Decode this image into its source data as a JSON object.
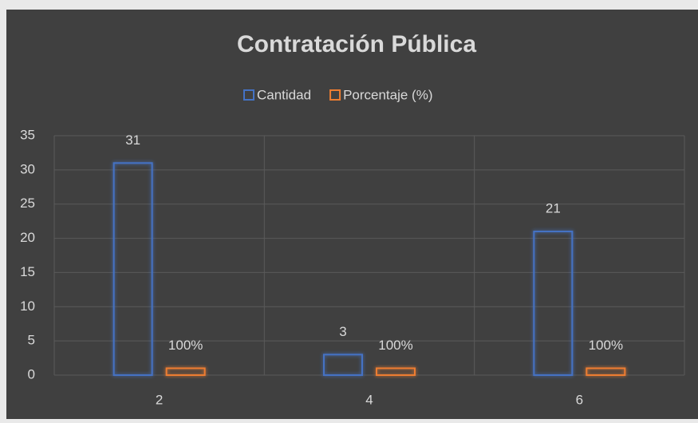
{
  "chart_data": {
    "type": "bar",
    "title": "Contratación Pública",
    "categories": [
      "2",
      "4",
      "6"
    ],
    "series": [
      {
        "name": "Cantidad",
        "color": "#4472c4",
        "values": [
          31,
          3,
          21
        ]
      },
      {
        "name": "Porcentaje (%)",
        "color": "#ed7d31",
        "values": [
          1,
          1,
          1
        ],
        "value_labels": [
          "100%",
          "100%",
          "100%"
        ]
      }
    ],
    "ylim": [
      0,
      35
    ],
    "yticks": [
      0,
      5,
      10,
      15,
      20,
      25,
      30,
      35
    ],
    "grid": true,
    "legend": "top"
  }
}
